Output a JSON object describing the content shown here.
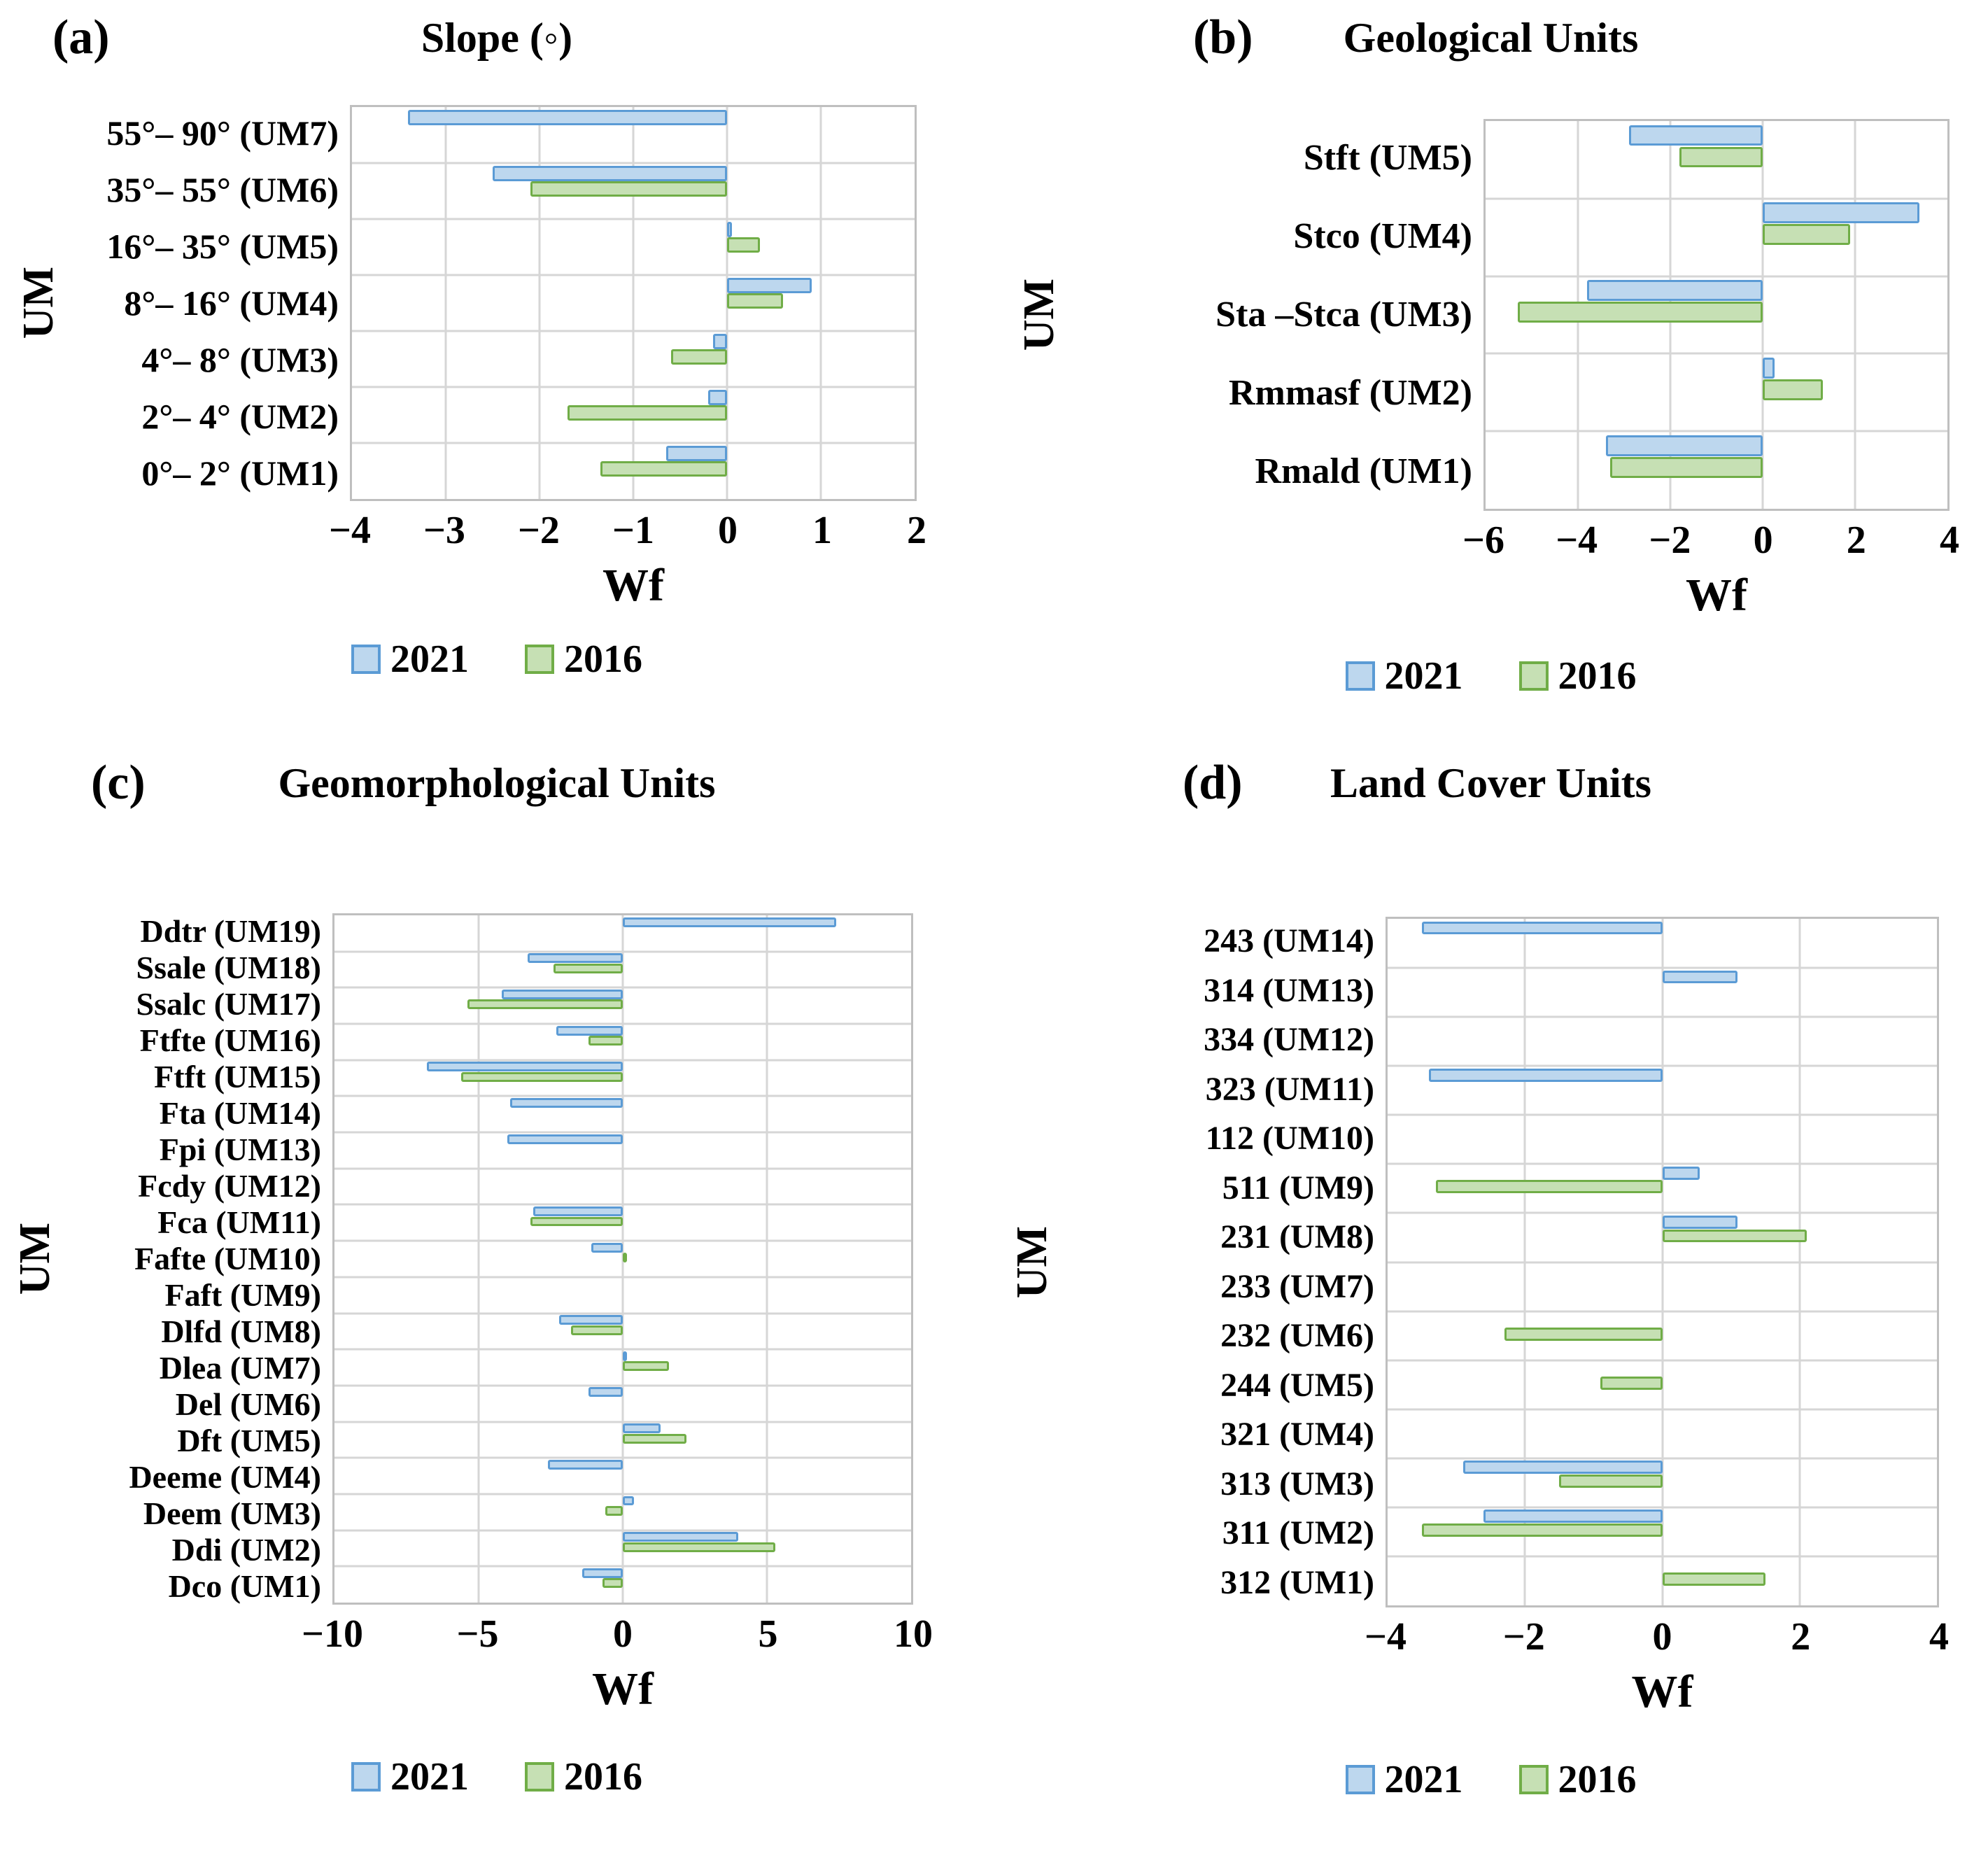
{
  "colors": {
    "bar_2021_fill": "#BDD7EE",
    "bar_2021_border": "#5B9BD5",
    "bar_2016_fill": "#C6E0B4",
    "bar_2016_border": "#70AD47",
    "gridline": "#D6D6D6",
    "plot_border": "#BFBFBF"
  },
  "chart_data": [
    {
      "type": "bar",
      "orientation": "horizontal",
      "tag": "(a)",
      "title": "Slope (◦)",
      "ylabel": "UM",
      "xlabel": "Wf",
      "legend_position": "bottom",
      "grid": true,
      "xlim": [
        -4,
        2
      ],
      "xticks": [
        -4,
        -3,
        -2,
        -1,
        0,
        1,
        2
      ],
      "categories": [
        "55°– 90° (UM7)",
        "35°– 55° (UM6)",
        "16°– 35° (UM5)",
        "8°– 16° (UM4)",
        "4°– 8° (UM3)",
        "2°– 4° (UM2)",
        "0°– 2° (UM1)"
      ],
      "series": [
        {
          "name": "2021",
          "values": [
            -3.4,
            -2.5,
            0.05,
            0.9,
            -0.15,
            -0.2,
            -0.65
          ]
        },
        {
          "name": "2016",
          "values": [
            0,
            -2.1,
            0.35,
            0.6,
            -0.6,
            -1.7,
            -1.35
          ]
        }
      ]
    },
    {
      "type": "bar",
      "orientation": "horizontal",
      "tag": "(b)",
      "title": "Geological Units",
      "ylabel": "UM",
      "xlabel": "Wf",
      "legend_position": "bottom",
      "grid": true,
      "xlim": [
        -6,
        4
      ],
      "xticks": [
        -6,
        -4,
        -2,
        0,
        2,
        4
      ],
      "categories": [
        "Stft (UM5)",
        "Stco (UM4)",
        "Sta –Stca (UM3)",
        "Rmmasf (UM2)",
        "Rmald (UM1)"
      ],
      "series": [
        {
          "name": "2021",
          "values": [
            -2.9,
            3.4,
            -3.8,
            0.25,
            -3.4
          ]
        },
        {
          "name": "2016",
          "values": [
            -1.8,
            1.9,
            -5.3,
            1.3,
            -3.3
          ]
        }
      ]
    },
    {
      "type": "bar",
      "orientation": "horizontal",
      "tag": "(c)",
      "title": "Geomorphological Units",
      "ylabel": "UM",
      "xlabel": "Wf",
      "legend_position": "bottom",
      "grid": true,
      "xlim": [
        -10,
        10
      ],
      "xticks": [
        -10,
        -5,
        0,
        5,
        10
      ],
      "categories": [
        "Ddtr (UM19)",
        "Ssale (UM18)",
        "Ssalc (UM17)",
        "Ftfte (UM16)",
        "Ftft (UM15)",
        "Fta (UM14)",
        "Fpi (UM13)",
        "Fcdy (UM12)",
        "Fca (UM11)",
        "Fafte (UM10)",
        "Faft (UM9)",
        "Dlfd (UM8)",
        "Dlea (UM7)",
        "Del (UM6)",
        "Dft (UM5)",
        "Deeme (UM4)",
        "Deem (UM3)",
        "Ddi (UM2)",
        "Dco (UM1)"
      ],
      "series": [
        {
          "name": "2021",
          "values": [
            7.4,
            -3.3,
            -4.2,
            -2.3,
            -6.8,
            -3.9,
            -4.0,
            0,
            -3.1,
            -1.1,
            0,
            -2.2,
            0.05,
            -1.2,
            1.3,
            -2.6,
            0.4,
            4.0,
            -1.4
          ]
        },
        {
          "name": "2016",
          "values": [
            0,
            -2.4,
            -5.4,
            -1.2,
            -5.6,
            0,
            0,
            0,
            -3.2,
            0.15,
            0,
            -1.8,
            1.6,
            0,
            2.2,
            0,
            -0.6,
            5.3,
            -0.7
          ]
        }
      ]
    },
    {
      "type": "bar",
      "orientation": "horizontal",
      "tag": "(d)",
      "title": "Land Cover Units",
      "ylabel": "UM",
      "xlabel": "Wf",
      "legend_position": "bottom",
      "grid": true,
      "xlim": [
        -4,
        4
      ],
      "xticks": [
        -4,
        -2,
        0,
        2,
        4
      ],
      "categories": [
        "243 (UM14)",
        "314 (UM13)",
        "334 (UM12)",
        "323 (UM11)",
        "112 (UM10)",
        "511 (UM9)",
        "231 (UM8)",
        "233 (UM7)",
        "232 (UM6)",
        "244 (UM5)",
        "321 (UM4)",
        "313 (UM3)",
        "311 (UM2)",
        "312 (UM1)"
      ],
      "series": [
        {
          "name": "2021",
          "values": [
            -3.5,
            1.1,
            0,
            -3.4,
            0,
            0.55,
            1.1,
            0,
            0,
            0,
            0,
            -2.9,
            -2.6,
            0
          ]
        },
        {
          "name": "2016",
          "values": [
            0,
            0,
            0,
            0,
            0,
            -3.3,
            2.1,
            0,
            -2.3,
            -0.9,
            0,
            -1.5,
            -3.5,
            1.5
          ]
        }
      ]
    }
  ]
}
